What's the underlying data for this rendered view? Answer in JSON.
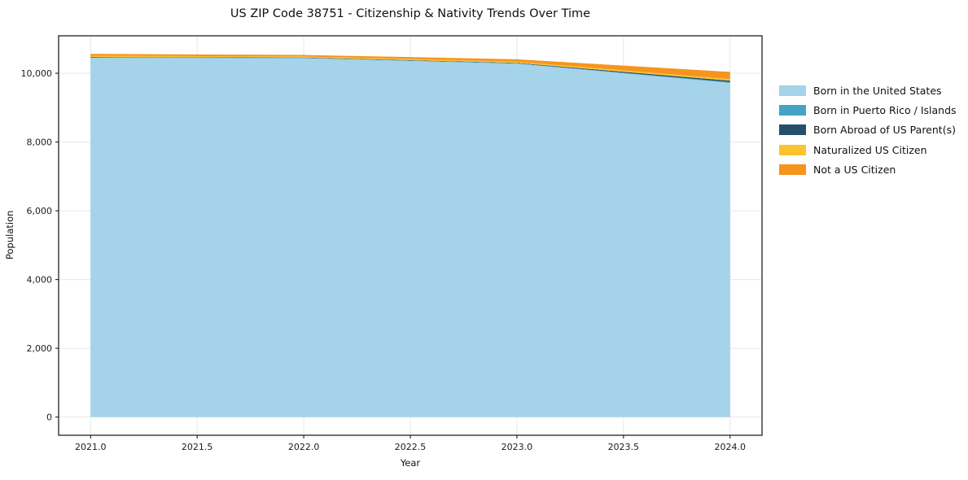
{
  "title": "US ZIP Code 38751 - Citizenship & Nativity Trends Over Time",
  "chart_data": {
    "type": "area",
    "stacked": true,
    "title": "US ZIP Code 38751 - Citizenship & Nativity Trends Over Time",
    "xlabel": "Year",
    "ylabel": "Population",
    "x": [
      2021,
      2022,
      2023,
      2024
    ],
    "series": [
      {
        "name": "Born in the United States",
        "color": "#A5D3E9",
        "values": [
          10450,
          10440,
          10280,
          9720
        ]
      },
      {
        "name": "Born in Puerto Rico / Islands",
        "color": "#45A3C5",
        "values": [
          12,
          8,
          10,
          25
        ]
      },
      {
        "name": "Born Abroad of US Parent(s)",
        "color": "#24506B",
        "values": [
          12,
          10,
          12,
          40
        ]
      },
      {
        "name": "Naturalized US Citizen",
        "color": "#FCC32E",
        "values": [
          35,
          30,
          35,
          45
        ]
      },
      {
        "name": "Not a US Citizen",
        "color": "#F7941E",
        "values": [
          55,
          45,
          70,
          210
        ]
      }
    ],
    "xticks": [
      2021.0,
      2021.5,
      2022.0,
      2022.5,
      2023.0,
      2023.5,
      2024.0
    ],
    "xtick_labels": [
      "2021.0",
      "2021.5",
      "2022.0",
      "2022.5",
      "2023.0",
      "2023.5",
      "2024.0"
    ],
    "yticks": [
      0,
      2000,
      4000,
      6000,
      8000,
      10000
    ],
    "ytick_labels": [
      "0",
      "2,000",
      "4,000",
      "6,000",
      "8,000",
      "10,000"
    ],
    "xlim": [
      2020.85,
      2024.15
    ],
    "ylim": [
      -530,
      11090
    ],
    "grid": true,
    "grid_color": "#e7e7e7",
    "spine_color": "#222222",
    "legend_position": "right"
  }
}
